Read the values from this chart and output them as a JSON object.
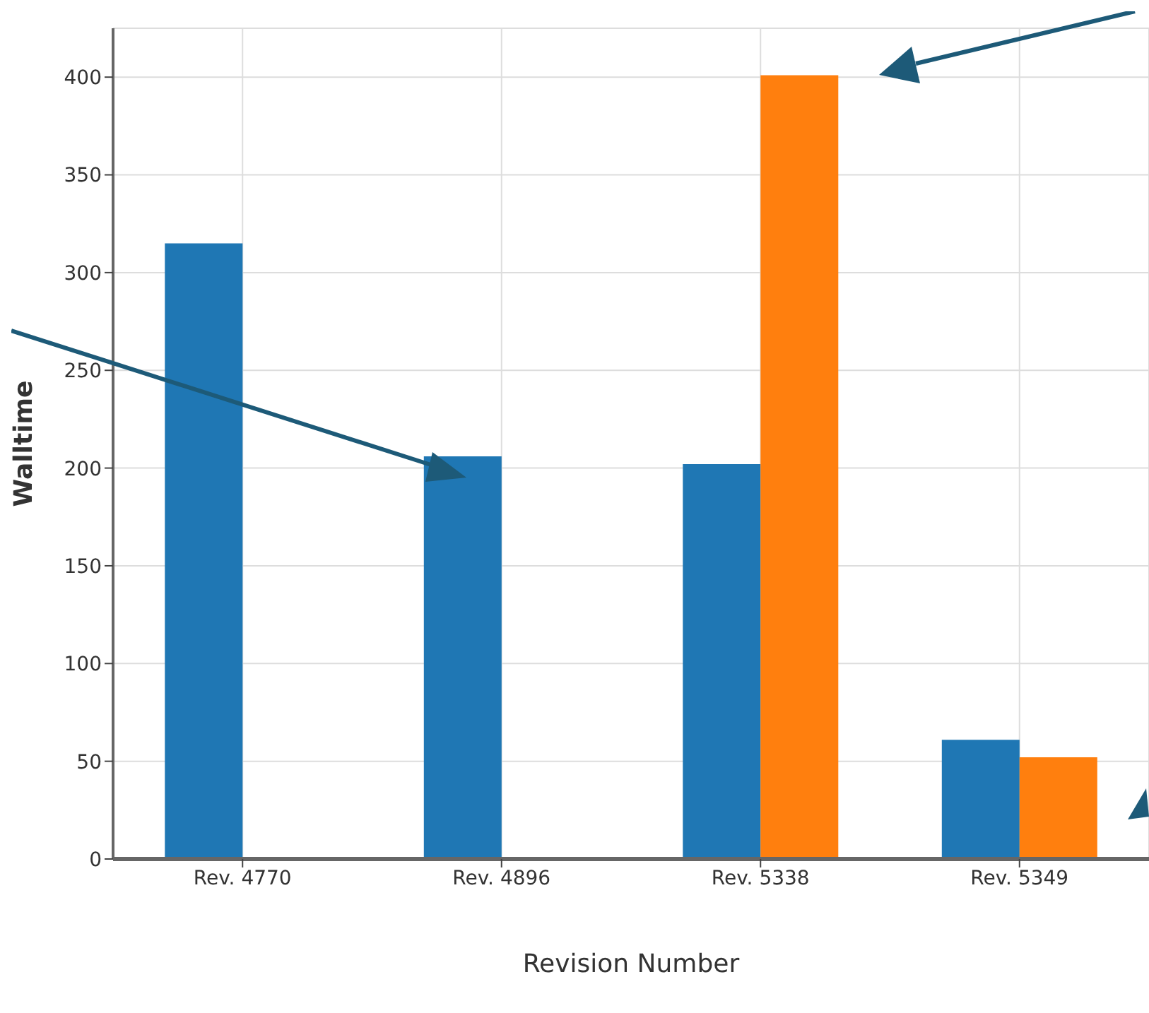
{
  "chart_data": {
    "type": "bar",
    "xlabel": "Revision Number",
    "ylabel": "Walltime",
    "categories": [
      "Rev. 4770",
      "Rev. 4896",
      "Rev. 5338",
      "Rev. 5349"
    ],
    "series": [
      {
        "color": "#1f77b4",
        "values": [
          315,
          206,
          202,
          61
        ]
      },
      {
        "color": "#ff7f0e",
        "values": [
          null,
          null,
          401,
          52
        ]
      }
    ],
    "ylim": [
      0,
      425
    ],
    "yticks": [
      0,
      50,
      100,
      150,
      200,
      250,
      300,
      350,
      400
    ],
    "grid": true,
    "legend": false
  }
}
